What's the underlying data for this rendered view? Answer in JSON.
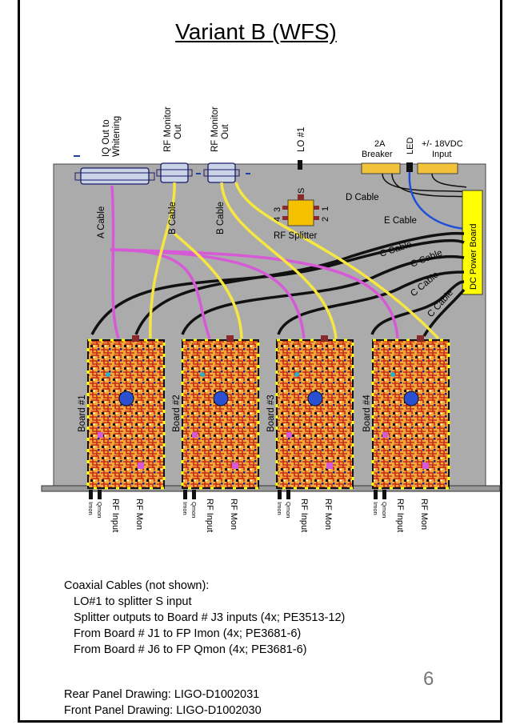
{
  "title": "Variant B (WFS)",
  "page_number": "6",
  "top_connectors": {
    "iq_out": [
      "IQ Out to",
      "Whitening"
    ],
    "rf_monitor_1": [
      "RF Monitor",
      "Out"
    ],
    "rf_monitor_2": [
      "RF Monitor",
      "Out"
    ],
    "lo": "LO #1",
    "breaker": [
      "2A",
      "Breaker"
    ],
    "led": "LED",
    "dc_input": [
      "+/- 18VDC",
      "Input"
    ]
  },
  "cables": {
    "a": "A Cable",
    "b1": "B Cable",
    "b2": "B Cable",
    "c": [
      "C Cable",
      "C Cable",
      "C Cable",
      "C Cable"
    ],
    "d": "D Cable",
    "e": "E Cable"
  },
  "splitter": {
    "label": "RF Splitter",
    "port_s": "S",
    "port_1": "1",
    "port_2": "2",
    "port_3": "3",
    "port_4": "4"
  },
  "dc_power_board": "DC Power Board",
  "boards": [
    {
      "label": "Board #1"
    },
    {
      "label": "Board #2"
    },
    {
      "label": "Board #3"
    },
    {
      "label": "Board #4"
    }
  ],
  "front_labels": {
    "imon": "Imon",
    "qmon": "Qmon",
    "rf_input": "RF Input",
    "rf_mon": "RF Mon"
  },
  "notes": {
    "heading": "Coaxial Cables (not shown):",
    "lines": [
      "LO#1 to splitter S input",
      "Splitter outputs to Board # J3 inputs (4x; PE3513-12)",
      "From Board # J1 to FP Imon (4x; PE3681-6)",
      "From Board # J6 to FP Qmon (4x; PE3681-6)"
    ]
  },
  "drawings": [
    "Rear Panel Drawing: LIGO-D1002031",
    "Front Panel Drawing: LIGO-D1002030"
  ]
}
